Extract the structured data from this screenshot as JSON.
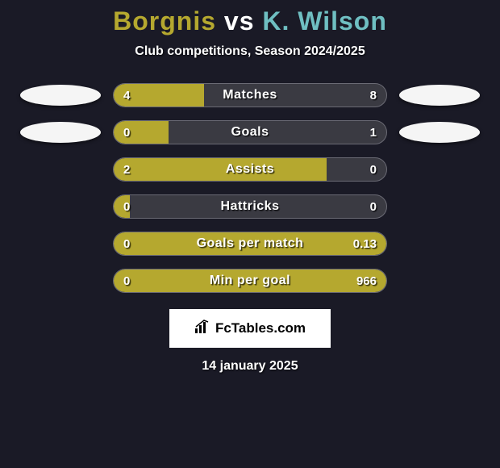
{
  "title": {
    "player1": "Borgnis",
    "vs": "vs",
    "player2": "K. Wilson",
    "color_p1": "#b5a82f",
    "color_vs": "#ffffff",
    "color_p2": "#6fbfc2"
  },
  "subtitle": "Club competitions, Season 2024/2025",
  "colors": {
    "fill": "#b5a82f",
    "bar_bg": "#3a3a42",
    "bar_border": "#6a6a74",
    "page_bg": "#1a1a26"
  },
  "bars": [
    {
      "label": "Matches",
      "left_val": "4",
      "right_val": "8",
      "fill_pct": 33,
      "avatar_left": true,
      "avatar_right": true
    },
    {
      "label": "Goals",
      "left_val": "0",
      "right_val": "1",
      "fill_pct": 20,
      "avatar_left": true,
      "avatar_right": true
    },
    {
      "label": "Assists",
      "left_val": "2",
      "right_val": "0",
      "fill_pct": 78,
      "avatar_left": false,
      "avatar_right": false
    },
    {
      "label": "Hattricks",
      "left_val": "0",
      "right_val": "0",
      "fill_pct": 6,
      "avatar_left": false,
      "avatar_right": false
    },
    {
      "label": "Goals per match",
      "left_val": "0",
      "right_val": "0.13",
      "fill_pct": 100,
      "avatar_left": false,
      "avatar_right": false
    },
    {
      "label": "Min per goal",
      "left_val": "0",
      "right_val": "966",
      "fill_pct": 100,
      "avatar_left": false,
      "avatar_right": false
    }
  ],
  "footer": {
    "brand": "FcTables.com"
  },
  "date": "14 january 2025"
}
